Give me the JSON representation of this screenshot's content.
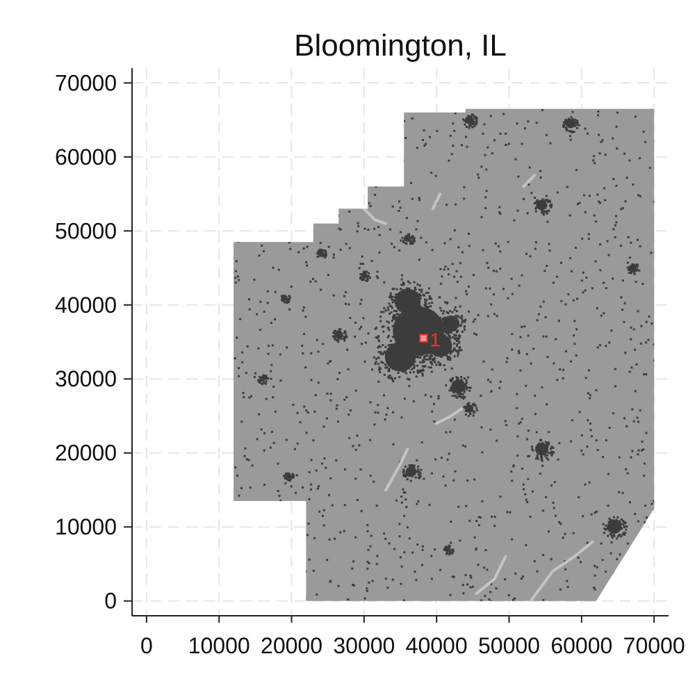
{
  "chart_data": {
    "type": "map",
    "title": "Bloomington, IL",
    "xlabel": "",
    "ylabel": "",
    "xlim": [
      -2000,
      72000
    ],
    "ylim": [
      -2000,
      72000
    ],
    "x_ticks": [
      "0",
      "10000",
      "20000",
      "30000",
      "40000",
      "50000",
      "60000",
      "70000"
    ],
    "y_ticks": [
      "0",
      "10000",
      "20000",
      "30000",
      "40000",
      "50000",
      "60000",
      "70000"
    ],
    "grid": true,
    "colors": {
      "land": "#9a9a9a",
      "developed": "#3c3c3c",
      "water": "#c4c4c4",
      "marker": "#ff3030"
    },
    "region_outline": [
      [
        22000,
        0
      ],
      [
        62000,
        0
      ],
      [
        70000,
        12500
      ],
      [
        70000,
        66500
      ],
      [
        44000,
        66500
      ],
      [
        44000,
        66000
      ],
      [
        35500,
        66000
      ],
      [
        35500,
        56000
      ],
      [
        30500,
        56000
      ],
      [
        30500,
        53000
      ],
      [
        26500,
        53000
      ],
      [
        26500,
        51000
      ],
      [
        23000,
        51000
      ],
      [
        23000,
        48500
      ],
      [
        12000,
        48500
      ],
      [
        12000,
        13500
      ],
      [
        22000,
        13500
      ]
    ],
    "clusters": [
      {
        "x": 37500,
        "y": 36500,
        "r": 4300
      },
      {
        "x": 35000,
        "y": 33000,
        "r": 2600
      },
      {
        "x": 40500,
        "y": 34500,
        "r": 2000
      },
      {
        "x": 36000,
        "y": 40500,
        "r": 2200
      },
      {
        "x": 42000,
        "y": 37500,
        "r": 1400
      },
      {
        "x": 43000,
        "y": 29000,
        "r": 1200
      },
      {
        "x": 44500,
        "y": 26000,
        "r": 700
      },
      {
        "x": 54500,
        "y": 20500,
        "r": 1100
      },
      {
        "x": 36500,
        "y": 17500,
        "r": 900
      },
      {
        "x": 64500,
        "y": 10000,
        "r": 1200
      },
      {
        "x": 54500,
        "y": 53500,
        "r": 900
      },
      {
        "x": 58500,
        "y": 64500,
        "r": 800
      },
      {
        "x": 44500,
        "y": 65000,
        "r": 700
      },
      {
        "x": 67000,
        "y": 45000,
        "r": 600
      },
      {
        "x": 26500,
        "y": 36000,
        "r": 700
      },
      {
        "x": 16000,
        "y": 30000,
        "r": 500
      },
      {
        "x": 19500,
        "y": 17000,
        "r": 500
      },
      {
        "x": 19000,
        "y": 41000,
        "r": 500
      },
      {
        "x": 36000,
        "y": 49000,
        "r": 600
      },
      {
        "x": 41500,
        "y": 7000,
        "r": 500
      },
      {
        "x": 24000,
        "y": 47000,
        "r": 500
      },
      {
        "x": 30000,
        "y": 44000,
        "r": 500
      }
    ],
    "water_lines": [
      [
        [
          45500,
          1000
        ],
        [
          48000,
          3000
        ],
        [
          49500,
          6000
        ]
      ],
      [
        [
          53000,
          0
        ],
        [
          56000,
          4000
        ],
        [
          59000,
          6000
        ],
        [
          61500,
          8000
        ]
      ],
      [
        [
          30000,
          53000
        ],
        [
          31500,
          51500
        ],
        [
          33000,
          51000
        ]
      ],
      [
        [
          33000,
          15000
        ],
        [
          35000,
          18500
        ],
        [
          36000,
          20500
        ]
      ],
      [
        [
          40000,
          24000
        ],
        [
          42000,
          25000
        ],
        [
          43500,
          26000
        ]
      ],
      [
        [
          39500,
          53000
        ],
        [
          40500,
          55000
        ]
      ],
      [
        [
          52000,
          56000
        ],
        [
          53500,
          57500
        ]
      ]
    ],
    "marker": {
      "label": "1",
      "x": 38200,
      "y": 35500
    }
  }
}
